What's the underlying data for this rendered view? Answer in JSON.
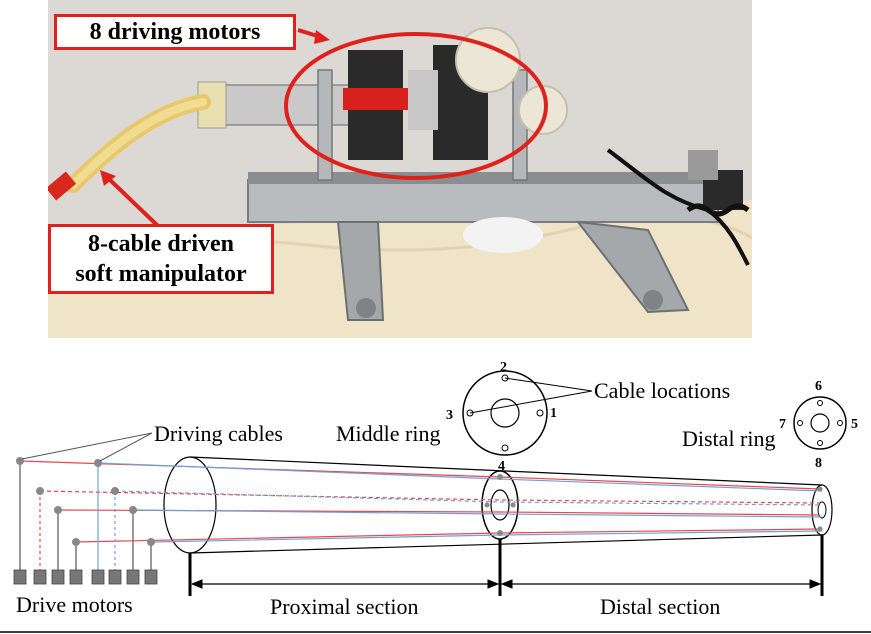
{
  "photo": {
    "callout_motors": "8 driving motors",
    "callout_manipulator_line1": "8-cable driven",
    "callout_manipulator_line2": "soft manipulator",
    "accent_color": "#e0201b"
  },
  "diagram": {
    "driving_cables": "Driving cables",
    "middle_ring": "Middle ring",
    "cable_locations": "Cable locations",
    "distal_ring": "Distal ring",
    "drive_motors": "Drive motors",
    "proximal_section": "Proximal section",
    "distal_section": "Distal section",
    "middle_ring_numbers": [
      "1",
      "2",
      "3",
      "4"
    ],
    "distal_ring_numbers": [
      "5",
      "6",
      "7",
      "8"
    ],
    "cable_colors": {
      "red": "#e8484a",
      "blue": "#6fa0d8",
      "black": "#555555"
    }
  }
}
